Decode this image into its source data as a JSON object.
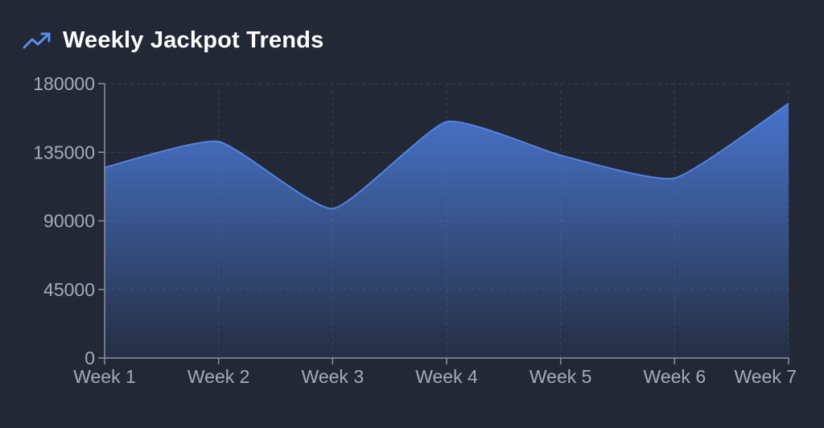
{
  "header": {
    "title": "Weekly Jackpot Trends",
    "icon": "trending-up-icon"
  },
  "colors": {
    "background": "#222836",
    "accent": "#4a78d4",
    "line": "#5582e0",
    "grid": "#3a4254",
    "axis": "#8a92a3",
    "tick_text": "#a3abbb"
  },
  "chart_data": {
    "type": "area",
    "title": "Weekly Jackpot Trends",
    "categories": [
      "Week 1",
      "Week 2",
      "Week 3",
      "Week 4",
      "Week 5",
      "Week 6",
      "Week 7"
    ],
    "values": [
      125000,
      142000,
      98000,
      155000,
      133000,
      118000,
      167000
    ],
    "ylim": [
      0,
      180000
    ],
    "yticks": [
      "0",
      "45000",
      "90000",
      "135000",
      "180000"
    ],
    "ytick_values": [
      0,
      45000,
      90000,
      135000,
      180000
    ],
    "xlabel": "",
    "ylabel": "",
    "grid": true,
    "curve": "smooth"
  }
}
